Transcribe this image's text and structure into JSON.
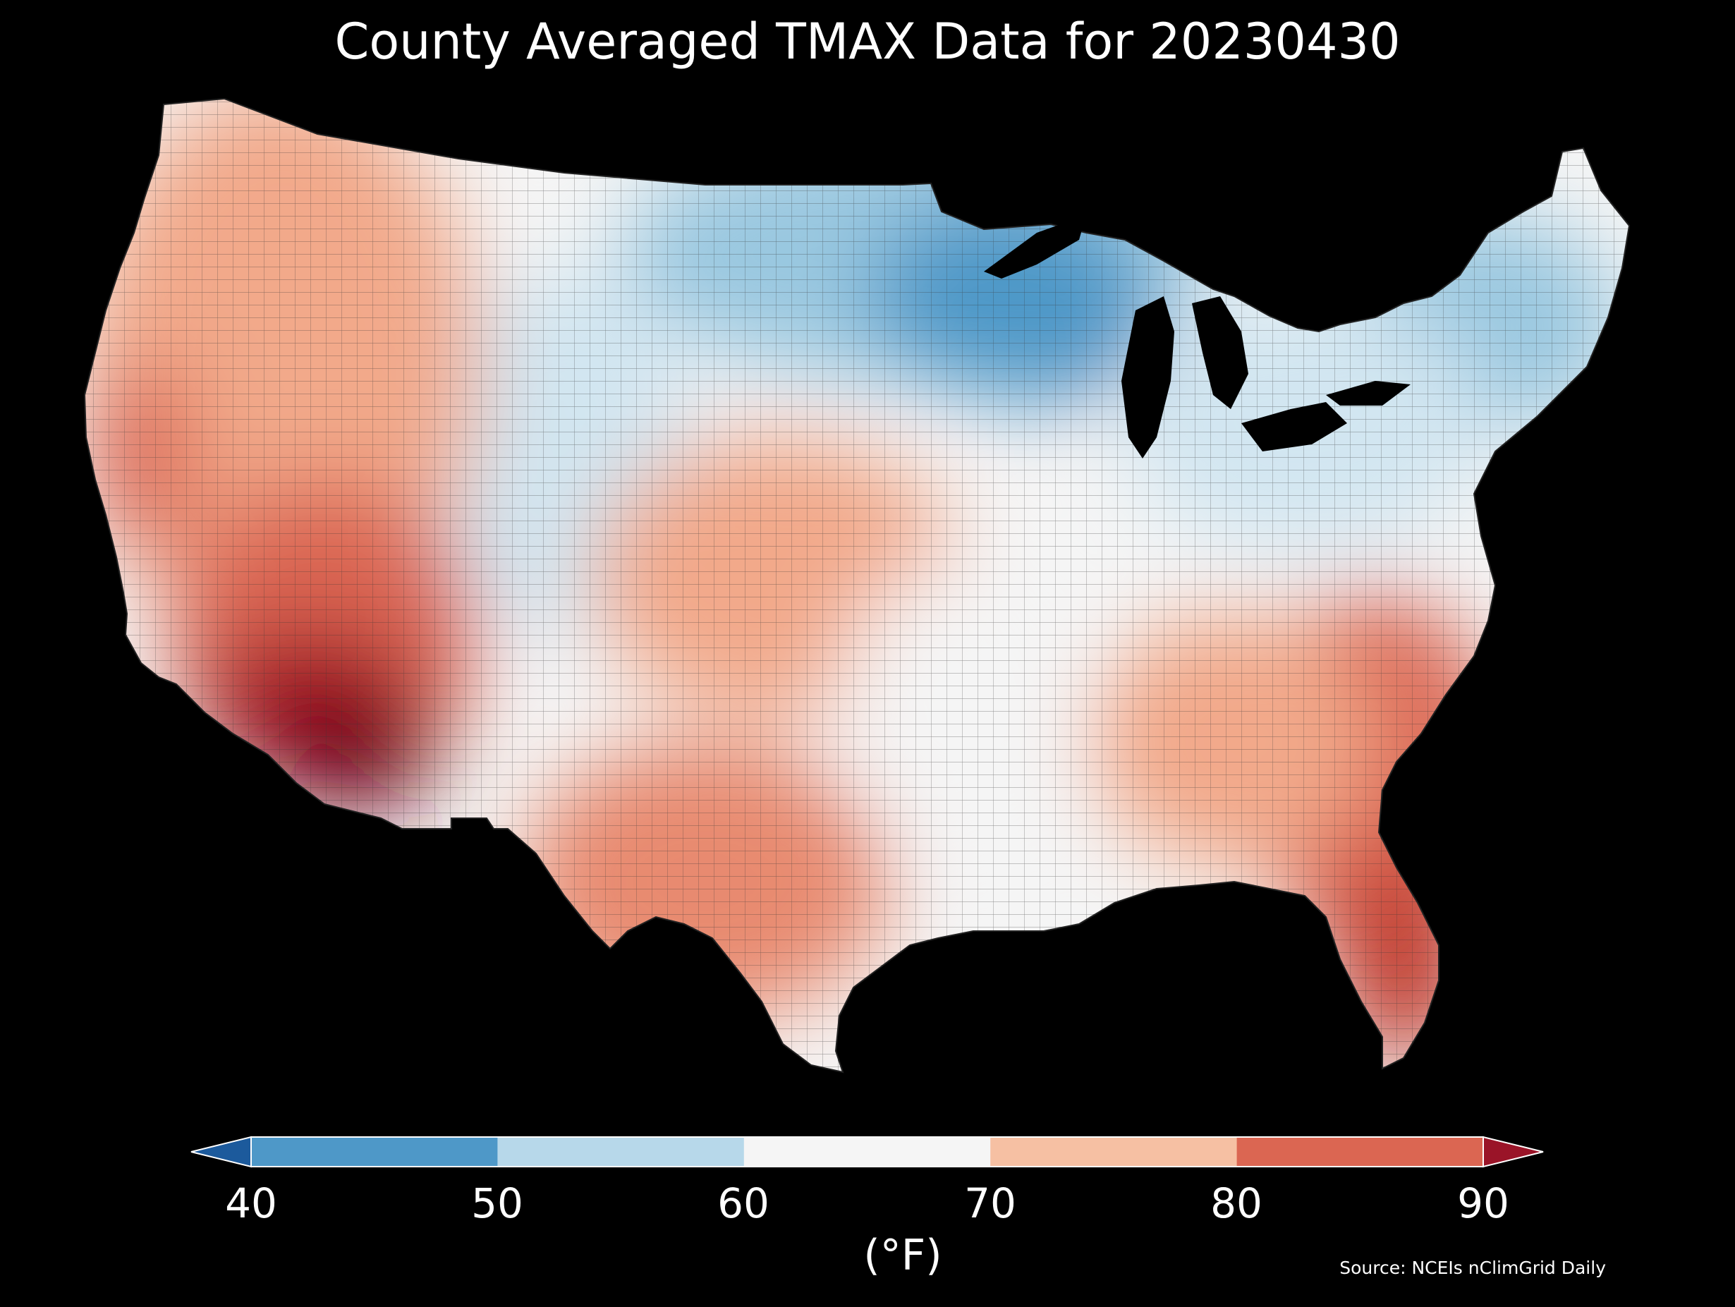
{
  "title": "County Averaged TMAX Data for 20230430",
  "units_label": "(°F)",
  "source": "Source: NCEIs nClimGrid Daily",
  "colorbar": {
    "ticks": [
      "40",
      "50",
      "60",
      "70",
      "80",
      "90"
    ],
    "bins": [
      {
        "range": "<40",
        "color": "#1c5a9c"
      },
      {
        "range": "40-50",
        "color": "#4e98c8"
      },
      {
        "range": "50-60",
        "color": "#b7d8ea"
      },
      {
        "range": "60-70",
        "color": "#f5f5f5"
      },
      {
        "range": "70-80",
        "color": "#f6c0a3"
      },
      {
        "range": "80-90",
        "color": "#db6652"
      },
      {
        "range": ">90",
        "color": "#9a1428"
      }
    ]
  },
  "map_colors": {
    "very_hot": "#6f0016",
    "hot": "#a51526",
    "warm": "#db6652",
    "mild_warm": "#f2a98a",
    "near_70": "#fad8c5",
    "neutral": "#f5f5f5",
    "cool": "#d2e6f1",
    "cooler": "#9ac8e0",
    "cold": "#4e98c8",
    "coldest": "#2a6db0"
  }
}
